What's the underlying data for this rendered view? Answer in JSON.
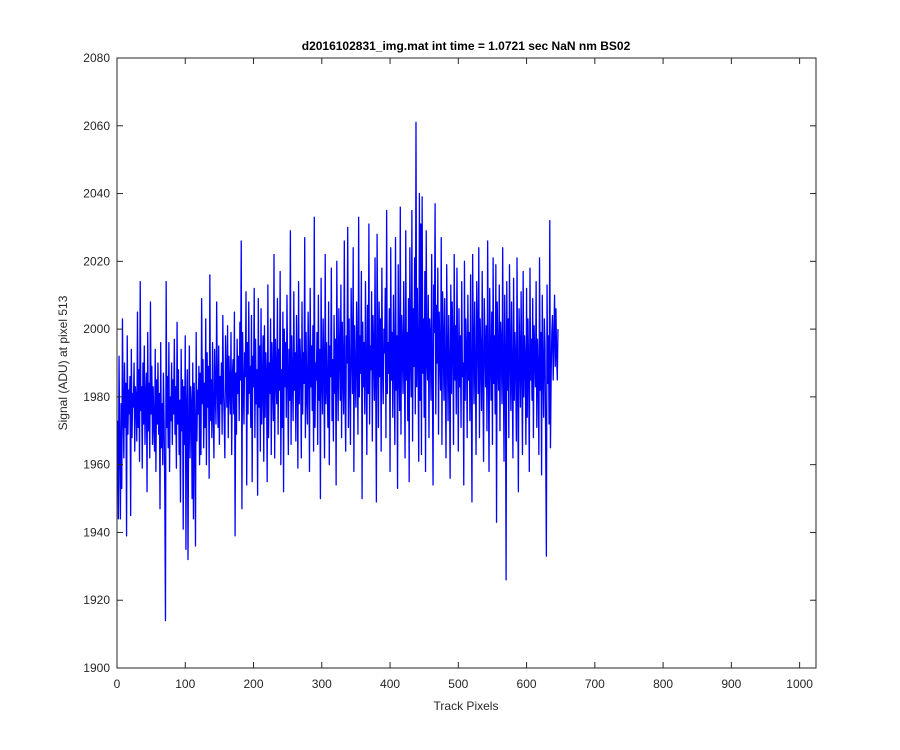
{
  "chart_data": {
    "type": "line",
    "title": "d2016102831_img.mat int time = 1.0721 sec  NaN nm BS02",
    "xlabel": "Track Pixels",
    "ylabel": "Signal (ADU) at pixel 513",
    "xlim": [
      0,
      1024
    ],
    "ylim": [
      1900,
      2080
    ],
    "xticks": [
      0,
      100,
      200,
      300,
      400,
      500,
      600,
      700,
      800,
      900,
      1000
    ],
    "yticks": [
      1900,
      1920,
      1940,
      1960,
      1980,
      2000,
      2020,
      2040,
      2060,
      2080
    ],
    "grid": false,
    "line_color": "#0000ff",
    "series": [
      {
        "x_start": 1,
        "x_step": 1,
        "values": [
          1973,
          1944,
          1992,
          1965,
          1944,
          1978,
          1953,
          2003,
          1976,
          1962,
          1990,
          1971,
          1984,
          1939,
          1998,
          1969,
          1982,
          1975,
          1986,
          1945,
          1994,
          1968,
          1981,
          1977,
          1990,
          1964,
          1983,
          1979,
          1967,
          2005,
          1971,
          1988,
          1961,
          2014,
          1976,
          1983,
          1959,
          1990,
          1972,
          1995,
          1966,
          1980,
          1987,
          1952,
          1999,
          1970,
          1984,
          1962,
          2008,
          1975,
          1989,
          1966,
          1983,
          1971,
          1964,
          1994,
          1958,
          1985,
          1972,
          1990,
          1969,
          1981,
          1947,
          1996,
          1965,
          1978,
          1960,
          1987,
          1973,
          1952,
          1914,
          2014,
          1971,
          1986,
          1965,
          1996,
          1958,
          1980,
          1973,
          1990,
          1966,
          1985,
          1975,
          1997,
          1969,
          1983,
          1959,
          2002,
          1972,
          1988,
          1963,
          1979,
          1949,
          1994,
          1970,
          1985,
          1941,
          1983,
          1966,
          1998,
          1935,
          1976,
          1988,
          1932,
          1971,
          1995,
          1962,
          1983,
          1978,
          1950,
          1990,
          1944,
          1984,
          1970,
          1936,
          1999,
          1967,
          1982,
          1975,
          1989,
          1960,
          1987,
          1963,
          2009,
          1978,
          1991,
          1965,
          1984,
          1971,
          2003,
          1960,
          1993,
          1977,
          1989,
          1956,
          2016,
          1973,
          1985,
          1968,
          1996,
          1975,
          1962,
          1994,
          1981,
          1972,
          2008,
          1983,
          1971,
          1995,
          1966,
          1986,
          1978,
          1990,
          1969,
          2004,
          1982,
          1974,
          1962,
          1998,
          1986,
          1977,
          2001,
          1968,
          1992,
          1983,
          1975,
          1999,
          1963,
          1986,
          1991,
          1975,
          2005,
          1939,
          1987,
          1969,
          1997,
          1981,
          1992,
          1973,
          2002,
          1985,
          2026,
          1947,
          1999,
          1984,
          1972,
          1993,
          1986,
          2011,
          1954,
          1996,
          1975,
          2008,
          1981,
          1989,
          1971,
          2004,
          1955,
          1992,
          1983,
          2012,
          1968,
          1997,
          1978,
          1988,
          1951,
          2009,
          1977,
          1995,
          1964,
          2006,
          1972,
          1983,
          1998,
          1961,
          2001,
          1974,
          1993,
          1986,
          1955,
          2013,
          1968,
          1990,
          1981,
          2003,
          1963,
          1996,
          1984,
          1973,
          2022,
          1962,
          1997,
          1986,
          1978,
          2009,
          1969,
          1994,
          1982,
          2017,
          1960,
          1988,
          1971,
          2005,
          1952,
          2000,
          1983,
          1996,
          1974,
          2010,
          1987,
          1963,
          1994,
          1979,
          2029,
          1966,
          1998,
          1985,
          1973,
          2011,
          1982,
          1993,
          1967,
          2004,
          1986,
          1959,
          2014,
          1978,
          1997,
          1989,
          1962,
          2008,
          1975,
          1993,
          1984,
          2027,
          1968,
          1999,
          1980,
          1972,
          2005,
          1991,
          1958,
          2012,
          1983,
          1995,
          1976,
          2001,
          1964,
          2033,
          1971,
          1990,
          1985,
          1999,
          1966,
          2010,
          1979,
          1994,
          1950,
          2015,
          1986,
          1975,
          2003,
          1989,
          1962,
          2022,
          1978,
          1996,
          1983,
          1971,
          2008,
          1960,
          1995,
          1986,
          2018,
          1973,
          1991,
          1967,
          2004,
          1981,
          1997,
          1954,
          2020,
          1988,
          1973,
          2006,
          1993,
          1979,
          2013,
          1968,
          2002,
          1987,
          1975,
          2026,
          1982,
          1964,
          1998,
          1990,
          2030,
          1971,
          2003,
          1985,
          1966,
          2012,
          1994,
          1981,
          2024,
          1958,
          2001,
          1986,
          1977,
          2008,
          1992,
          1969,
          2033,
          1980,
          1998,
          1987,
          2017,
          1950,
          2002,
          1983,
          1996,
          1975,
          2014,
          1989,
          1963,
          2007,
          1981,
          2031,
          1972,
          1995,
          1988,
          2011,
          1967,
          2004,
          1993,
          1979,
          2021,
          1984,
          1949,
          2028,
          1997,
          1971,
          2008,
          1986,
          2003,
          1964,
          2018,
          1989,
          1978,
          2000,
          1993,
          2012,
          1968,
          2035,
          1981,
          1996,
          1987,
          2006,
          1958,
          2024,
          1985,
          1999,
          1974,
          2010,
          1991,
          1966,
          2027,
          1982,
          1998,
          1953,
          2019,
          1988,
          1976,
          2036,
          1969,
          2004,
          1995,
          1981,
          2014,
          1990,
          1962,
          2029,
          1985,
          1999,
          1973,
          2009,
          1955,
          2024,
          1993,
          1980,
          2035,
          1967,
          2006,
          1989,
          2021,
          1975,
          2061,
          1983,
          2012,
          1991,
          1961,
          2040,
          1979,
          2031,
          1963,
          2039,
          1987,
          2003,
          1974,
          2017,
          1958,
          2029,
          1991,
          1985,
          2010,
          1968,
          2003,
          1997,
          1979,
          2022,
          1986,
          1954,
          2013,
          1999,
          2037,
          1975,
          2007,
          1990,
          2018,
          1969,
          2005,
          1993,
          1982,
          2027,
          1966,
          2011,
          1997,
          1979,
          2009,
          1985,
          1962,
          2019,
          1994,
          1973,
          2004,
          1988,
          1956,
          2013,
          1981,
          2008,
          1997,
          1966,
          2022,
          1985,
          2001,
          1975,
          2018,
          1992,
          1964,
          2006,
          1983,
          1998,
          1971,
          2014,
          1986,
          1990,
          1954,
          2020,
          1979,
          2003,
          1994,
          1968,
          2010,
          1985,
          1999,
          1973,
          2016,
          1982,
          1949,
          2022,
          1995,
          1978,
          2008,
          1987,
          1963,
          2014,
          1999,
          1981,
          2024,
          1968,
          2003,
          1992,
          1976,
          2017,
          1985,
          1961,
          2009,
          1997,
          1983,
          2001,
          1970,
          2026,
          1988,
          1958,
          2012,
          1993,
          1979,
          2005,
          1966,
          2021,
          1984,
          1998,
          1975,
          2019,
          1943,
          2008,
          1991,
          1982,
          2013,
          1970,
          2002,
          1995,
          1978,
          2024,
          1987,
          1961,
          2010,
          1993,
          1926,
          2014,
          1982,
          2003,
          1968,
          2019,
          1992,
          1976,
          2008,
          1985,
          1962,
          2015,
          1979,
          1999,
          1990,
          1967,
          2021,
          1983,
          1952,
          2006,
          1994,
          1977,
          2011,
          1988,
          1963,
          2017,
          1980,
          1998,
          1991,
          1966,
          2012,
          1974,
          2003,
          1989,
          1958,
          2018,
          1985,
          1997,
          1979,
          2009,
          1968,
          2001,
          1992,
          1983,
          2014,
          1971,
          1997,
          1987,
          1963,
          2021,
          1982,
          1999,
          1957,
          2010,
          1988,
          1974,
          2003,
          1995,
          1966,
          1933,
          2013,
          1984,
          1998,
          1972,
          2032,
          1965,
          1986,
          1999,
          2004,
          1985,
          1997,
          2010,
          1989,
          2006,
          1992,
          1985,
          2000
        ]
      }
    ]
  }
}
